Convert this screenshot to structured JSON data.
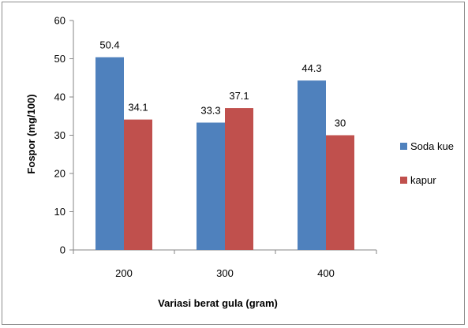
{
  "chart_data": {
    "type": "bar",
    "title": "",
    "xlabel": "Variasi berat gula (gram)",
    "ylabel": "Fospor (mg/100)",
    "categories": [
      "200",
      "300",
      "400"
    ],
    "series": [
      {
        "name": "Soda kue",
        "values": [
          50.4,
          33.3,
          44.3
        ],
        "labels": [
          "50.4",
          "33.3",
          "44.3"
        ],
        "color": "#4F81BD"
      },
      {
        "name": "kapur",
        "values": [
          34.1,
          37.1,
          30
        ],
        "labels": [
          "34.1",
          "37.1",
          "30"
        ],
        "color": "#C0504D"
      }
    ],
    "ylim": [
      0,
      60
    ],
    "yticks": [
      0,
      10,
      20,
      30,
      40,
      50,
      60
    ],
    "ytick_labels": [
      "0",
      "10",
      "20",
      "30",
      "40",
      "50",
      "60"
    ],
    "grid": false,
    "legend_position": "right"
  }
}
